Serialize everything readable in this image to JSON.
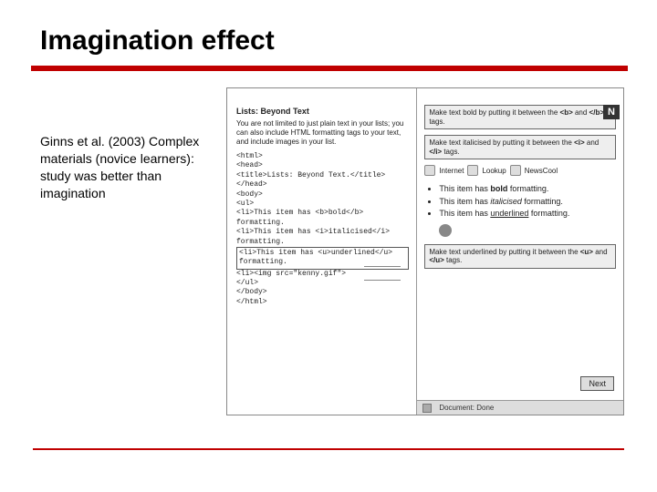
{
  "title": "Imagination effect",
  "left_text": "Ginns et al. (2003) Complex materials (novice learners): study was better than imagination",
  "screenshot": {
    "win_buttons": [
      "_",
      "□",
      "×"
    ],
    "n_badge": "N",
    "left_pane": {
      "title": "Lists: Beyond Text",
      "instruction": "You are not limited to just plain text in your lists; you can also include HTML formatting tags to your text, and include images in your list.",
      "code_lines": [
        "<html>",
        "<head>",
        "<title>Lists: Beyond Text.</title>",
        "</head>",
        "<body>",
        "<ul>",
        "<li>This item has <b>bold</b> formatting.",
        "<li>This item has <i>italicised</i> formatting.",
        "<li>This item has <u>underlined</u> formatting.",
        "<li><img src=\"kenny.gif\">",
        "</ul>",
        "</body>",
        "</html>"
      ],
      "boxed_line_index": 8
    },
    "right_pane": {
      "tips": [
        {
          "pre": "Make text bold by putting it between the ",
          "b1": "<b>",
          "mid": " and ",
          "b2": "</b>",
          "post": " tags."
        },
        {
          "pre": "Make text italicised by putting it between the ",
          "b1": "<i>",
          "mid": " and ",
          "b2": "</i>",
          "post": " tags."
        }
      ],
      "toolbar_items": [
        "Internet",
        "Lookup",
        "NewsCool"
      ],
      "bullets": [
        {
          "text_pre": "This item has ",
          "em": "bold",
          "em_style": "b",
          "text_post": " formatting."
        },
        {
          "text_pre": "This item has ",
          "em": "italicised",
          "em_style": "i",
          "text_post": " formatting."
        },
        {
          "text_pre": "This item has ",
          "em": "underlined",
          "em_style": "u",
          "text_post": " formatting."
        }
      ],
      "tip_underline": {
        "pre": "Make text underlined by putting it between the ",
        "b1": "<u>",
        "mid": " and ",
        "b2": "</u>",
        "post": " tags."
      },
      "next_label": "Next",
      "status_text": "Document: Done"
    }
  },
  "colors": {
    "accent": "#c00000",
    "background": "#ffffff",
    "panel_bg": "#f6f6f6",
    "border": "#888888"
  }
}
